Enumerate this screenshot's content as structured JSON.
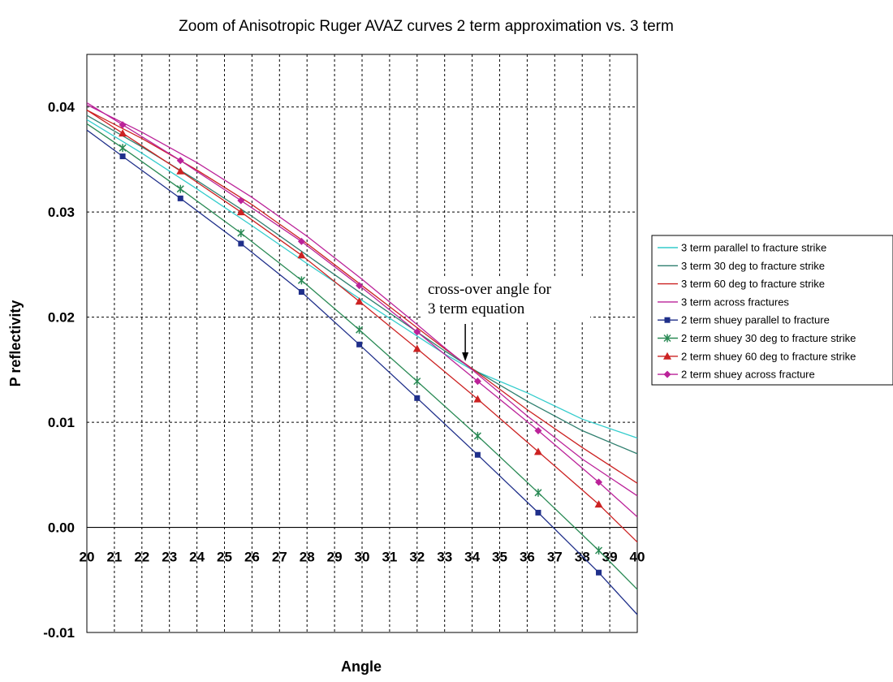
{
  "chart_data": {
    "type": "line",
    "title": "Zoom of Anisotropic Ruger AVAZ curves 2 term approximation vs. 3 term",
    "xlabel": "Angle",
    "ylabel": "P reflectivity",
    "xlim": [
      20,
      40
    ],
    "ylim": [
      -0.01,
      0.045
    ],
    "x_ticks": [
      "20",
      "21",
      "22",
      "23",
      "24",
      "25",
      "26",
      "27",
      "28",
      "29",
      "30",
      "31",
      "32",
      "33",
      "34",
      "35",
      "36",
      "37",
      "38",
      "39",
      "40"
    ],
    "y_ticks": [
      "0.04",
      "0.03",
      "0.02",
      "0.01",
      "0.00",
      "-0.01"
    ],
    "grid": true,
    "legend_position": "right",
    "series": [
      {
        "name": "3 term parallel to fracture strike",
        "color": "#33cccc",
        "marker": "none",
        "x": [
          20,
          22,
          24,
          26,
          28,
          30,
          32,
          33,
          34,
          36,
          38,
          40
        ],
        "y": [
          0.0388,
          0.0356,
          0.0322,
          0.0287,
          0.0251,
          0.0216,
          0.0182,
          0.0165,
          0.015,
          0.0128,
          0.0103,
          0.0085
        ]
      },
      {
        "name": "3 term 30 deg to fracture strike",
        "color": "#2f7f6f",
        "marker": "none",
        "x": [
          20,
          22,
          24,
          26,
          28,
          30,
          32,
          33,
          34,
          36,
          38,
          40
        ],
        "y": [
          0.0392,
          0.0362,
          0.033,
          0.0296,
          0.0259,
          0.0222,
          0.0186,
          0.0168,
          0.0151,
          0.012,
          0.0092,
          0.007
        ]
      },
      {
        "name": "3 term 60 deg to fracture strike",
        "color": "#cc2222",
        "marker": "none",
        "x": [
          20,
          22,
          24,
          26,
          28,
          30,
          32,
          33,
          34,
          36,
          38,
          40
        ],
        "y": [
          0.0397,
          0.037,
          0.034,
          0.0307,
          0.027,
          0.023,
          0.019,
          0.017,
          0.0151,
          0.0112,
          0.0076,
          0.0042
        ]
      },
      {
        "name": "3 term across fractures",
        "color": "#bb2299",
        "marker": "none",
        "x": [
          20,
          22,
          24,
          26,
          28,
          30,
          32,
          33,
          34,
          36,
          38,
          40
        ],
        "y": [
          0.0402,
          0.0376,
          0.0347,
          0.0314,
          0.0277,
          0.0236,
          0.0193,
          0.0171,
          0.015,
          0.0106,
          0.0065,
          0.003
        ]
      },
      {
        "name": "2 term shuey parallel to fracture",
        "color": "#1f2f8a",
        "marker": "square",
        "x": [
          20,
          21.3,
          23.4,
          25.6,
          27.8,
          29.9,
          32.0,
          34.2,
          36.4,
          38.6,
          40
        ],
        "y": [
          0.0378,
          0.0353,
          0.0313,
          0.027,
          0.0224,
          0.0174,
          0.0123,
          0.0069,
          0.0014,
          -0.0043,
          -0.0083
        ]
      },
      {
        "name": "2 term shuey 30 deg to fracture strike",
        "color": "#2a8a55",
        "marker": "star",
        "x": [
          20,
          21.3,
          23.4,
          25.6,
          27.8,
          29.9,
          32.0,
          34.2,
          36.4,
          38.6,
          40
        ],
        "y": [
          0.0384,
          0.0361,
          0.0322,
          0.028,
          0.0235,
          0.0188,
          0.0139,
          0.0087,
          0.0033,
          -0.0022,
          -0.0059
        ]
      },
      {
        "name": "2 term shuey 60 deg to fracture strike",
        "color": "#cc2222",
        "marker": "triangle",
        "x": [
          20,
          21.3,
          23.4,
          25.6,
          27.8,
          29.9,
          32.0,
          34.2,
          36.4,
          38.6,
          40
        ],
        "y": [
          0.0397,
          0.0375,
          0.0339,
          0.03,
          0.0259,
          0.0215,
          0.017,
          0.0122,
          0.0072,
          0.0022,
          -0.0014
        ]
      },
      {
        "name": "2 term shuey across fracture",
        "color": "#bb2299",
        "marker": "diamond",
        "x": [
          20,
          21.3,
          23.4,
          25.6,
          27.8,
          29.9,
          32.0,
          34.2,
          36.4,
          38.6,
          40
        ],
        "y": [
          0.0404,
          0.0383,
          0.0349,
          0.0311,
          0.0272,
          0.023,
          0.0186,
          0.0139,
          0.0092,
          0.0043,
          0.001
        ]
      }
    ],
    "annotations": [
      {
        "text_lines": [
          "cross-over angle for",
          "3 term equation"
        ],
        "arrow_to": {
          "x": 33.75,
          "y": 0.0158
        }
      }
    ]
  }
}
